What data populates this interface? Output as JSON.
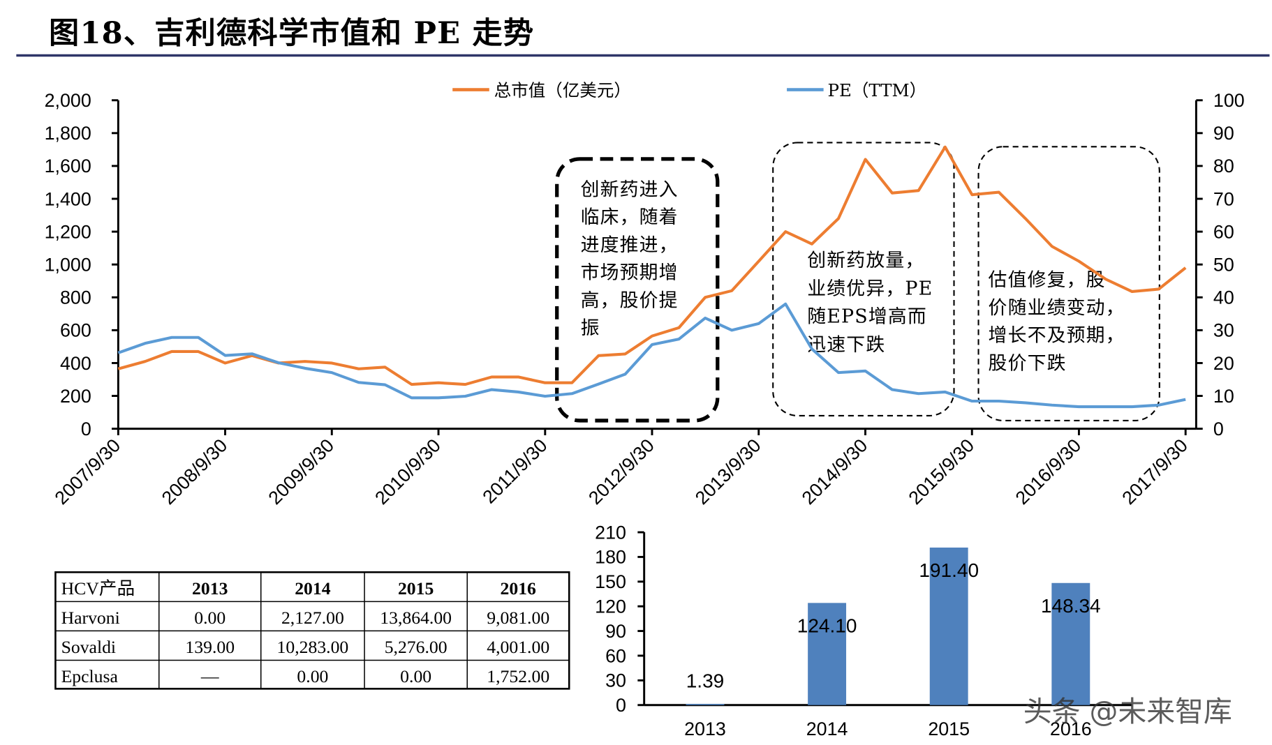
{
  "watermark": "头条 @未来智库",
  "chart_data": [
    {
      "type": "line",
      "title": "图18、吉利德科学市值和 PE 走势",
      "legend": "top",
      "x": [
        "2007/9/30",
        "2007/12/31",
        "2008/3/31",
        "2008/6/30",
        "2008/9/30",
        "2008/12/31",
        "2009/3/31",
        "2009/6/30",
        "2009/9/30",
        "2009/12/31",
        "2010/3/31",
        "2010/6/30",
        "2010/9/30",
        "2010/12/31",
        "2011/3/31",
        "2011/6/30",
        "2011/9/30",
        "2011/12/31",
        "2012/3/31",
        "2012/6/30",
        "2012/9/30",
        "2012/12/31",
        "2013/3/31",
        "2013/6/30",
        "2013/9/30",
        "2013/12/31",
        "2014/3/31",
        "2014/6/30",
        "2014/9/30",
        "2014/12/31",
        "2015/3/31",
        "2015/6/30",
        "2015/9/30",
        "2015/12/31",
        "2016/3/31",
        "2016/6/30",
        "2016/9/30",
        "2016/12/31",
        "2017/3/31",
        "2017/6/30",
        "2017/9/30"
      ],
      "xticks": [
        "2007/9/30",
        "2008/9/30",
        "2009/9/30",
        "2010/9/30",
        "2011/9/30",
        "2012/9/30",
        "2013/9/30",
        "2014/9/30",
        "2015/9/30",
        "2016/9/30",
        "2017/9/30"
      ],
      "y_left": {
        "min": 0,
        "max": 2000,
        "ticks": [
          "0",
          "200",
          "400",
          "600",
          "800",
          "1,000",
          "1,200",
          "1,400",
          "1,600",
          "1,800",
          "2,000"
        ]
      },
      "y_right": {
        "min": 0,
        "max": 100,
        "ticks": [
          "0",
          "10",
          "20",
          "30",
          "40",
          "50",
          "60",
          "70",
          "80",
          "90",
          "100"
        ]
      },
      "series": [
        {
          "name": "总市值（亿美元）",
          "axis": "left",
          "color": "#ED7D31",
          "values": [
            365,
            410,
            470,
            470,
            400,
            445,
            400,
            410,
            400,
            365,
            375,
            270,
            280,
            270,
            315,
            315,
            280,
            280,
            445,
            455,
            565,
            615,
            800,
            840,
            1020,
            1200,
            1125,
            1280,
            1640,
            1435,
            1450,
            1715,
            1425,
            1440,
            1280,
            1110,
            1020,
            910,
            835,
            850,
            980
          ]
        },
        {
          "name": "PE（TTM）",
          "axis": "right",
          "color": "#5B9BD5",
          "values": [
            23.1,
            26.0,
            27.8,
            27.8,
            22.3,
            22.8,
            20.1,
            18.4,
            17.1,
            14.1,
            13.4,
            9.4,
            9.4,
            9.9,
            11.9,
            11.2,
            9.9,
            10.7,
            13.6,
            16.6,
            25.6,
            27.3,
            33.7,
            30.0,
            32.0,
            38.0,
            24.3,
            17.1,
            17.6,
            11.9,
            10.7,
            11.2,
            8.4,
            8.4,
            7.9,
            7.2,
            6.7,
            6.7,
            6.7,
            7.2,
            8.9
          ]
        }
      ],
      "annotations": [
        {
          "lines": [
            "创新药进入",
            "临床，随着",
            "进度推进，",
            "市场预期增",
            "高，股价提",
            "振"
          ]
        },
        {
          "lines": [
            "创新药放量，",
            "业绩优异，PE",
            "随EPS增高而",
            "迅速下跌"
          ]
        },
        {
          "lines": [
            "估值修复，股",
            "价随业绩变动，",
            "增长不及预期，",
            "股价下跌"
          ]
        }
      ]
    },
    {
      "type": "table",
      "columns": [
        "HCV产品",
        "2013",
        "2014",
        "2015",
        "2016"
      ],
      "rows": [
        [
          "Harvoni",
          "0.00",
          "2,127.00",
          "13,864.00",
          "9,081.00"
        ],
        [
          "Sovaldi",
          "139.00",
          "10,283.00",
          "5,276.00",
          "4,001.00"
        ],
        [
          "Epclusa",
          "—",
          "0.00",
          "0.00",
          "1,752.00"
        ]
      ]
    },
    {
      "type": "bar",
      "categories": [
        "2013",
        "2014",
        "2015",
        "2016"
      ],
      "values": [
        1.39,
        124.1,
        191.4,
        148.34
      ],
      "labels": [
        "1.39",
        "124.10",
        "191.40",
        "148.34"
      ],
      "ylim": [
        0,
        210
      ],
      "yticks": [
        "0",
        "30",
        "60",
        "90",
        "120",
        "150",
        "180",
        "210"
      ],
      "color": "#4F81BD"
    }
  ]
}
